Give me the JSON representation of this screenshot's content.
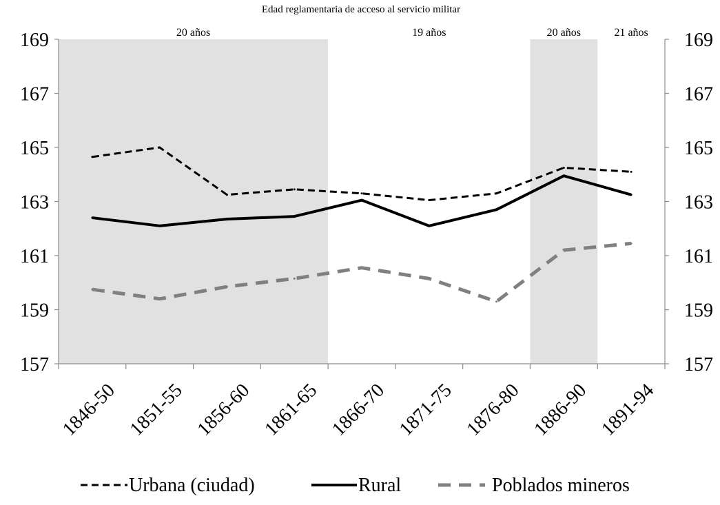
{
  "chart_data": {
    "type": "line",
    "title": "Edad reglamentaria de acceso al servicio militar",
    "categories": [
      "1846-50",
      "1851-55",
      "1856-60",
      "1861-65",
      "1866-70",
      "1871-75",
      "1876-80",
      "1886-90",
      "1891-94"
    ],
    "ylim": [
      157,
      169
    ],
    "yticks": [
      157,
      159,
      161,
      163,
      165,
      167,
      169
    ],
    "series": [
      {
        "name": "Urbana (ciudad)",
        "color": "#000000",
        "style": "short-dash",
        "values": [
          164.65,
          165.0,
          163.25,
          163.45,
          163.3,
          163.05,
          163.3,
          164.25,
          164.1
        ]
      },
      {
        "name": "Rural",
        "color": "#000000",
        "style": "solid",
        "values": [
          162.4,
          162.1,
          162.35,
          162.45,
          163.05,
          162.1,
          162.7,
          163.95,
          163.25
        ]
      },
      {
        "name": "Poblados mineros",
        "color": "#808080",
        "style": "long-dash",
        "values": [
          159.75,
          159.4,
          159.85,
          160.15,
          160.55,
          160.15,
          159.3,
          161.2,
          161.45
        ]
      }
    ],
    "age_bands": [
      {
        "label": "20 años",
        "from": 0,
        "to": 4,
        "shaded": true
      },
      {
        "label": "19 años",
        "from": 4,
        "to": 7,
        "shaded": false
      },
      {
        "label": "20 años",
        "from": 7,
        "to": 8,
        "shaded": true
      },
      {
        "label": "21 años",
        "from": 8,
        "to": 9,
        "shaded": false
      }
    ],
    "band_color": "#e1e1e1",
    "grid": false,
    "legend_position": "bottom"
  }
}
